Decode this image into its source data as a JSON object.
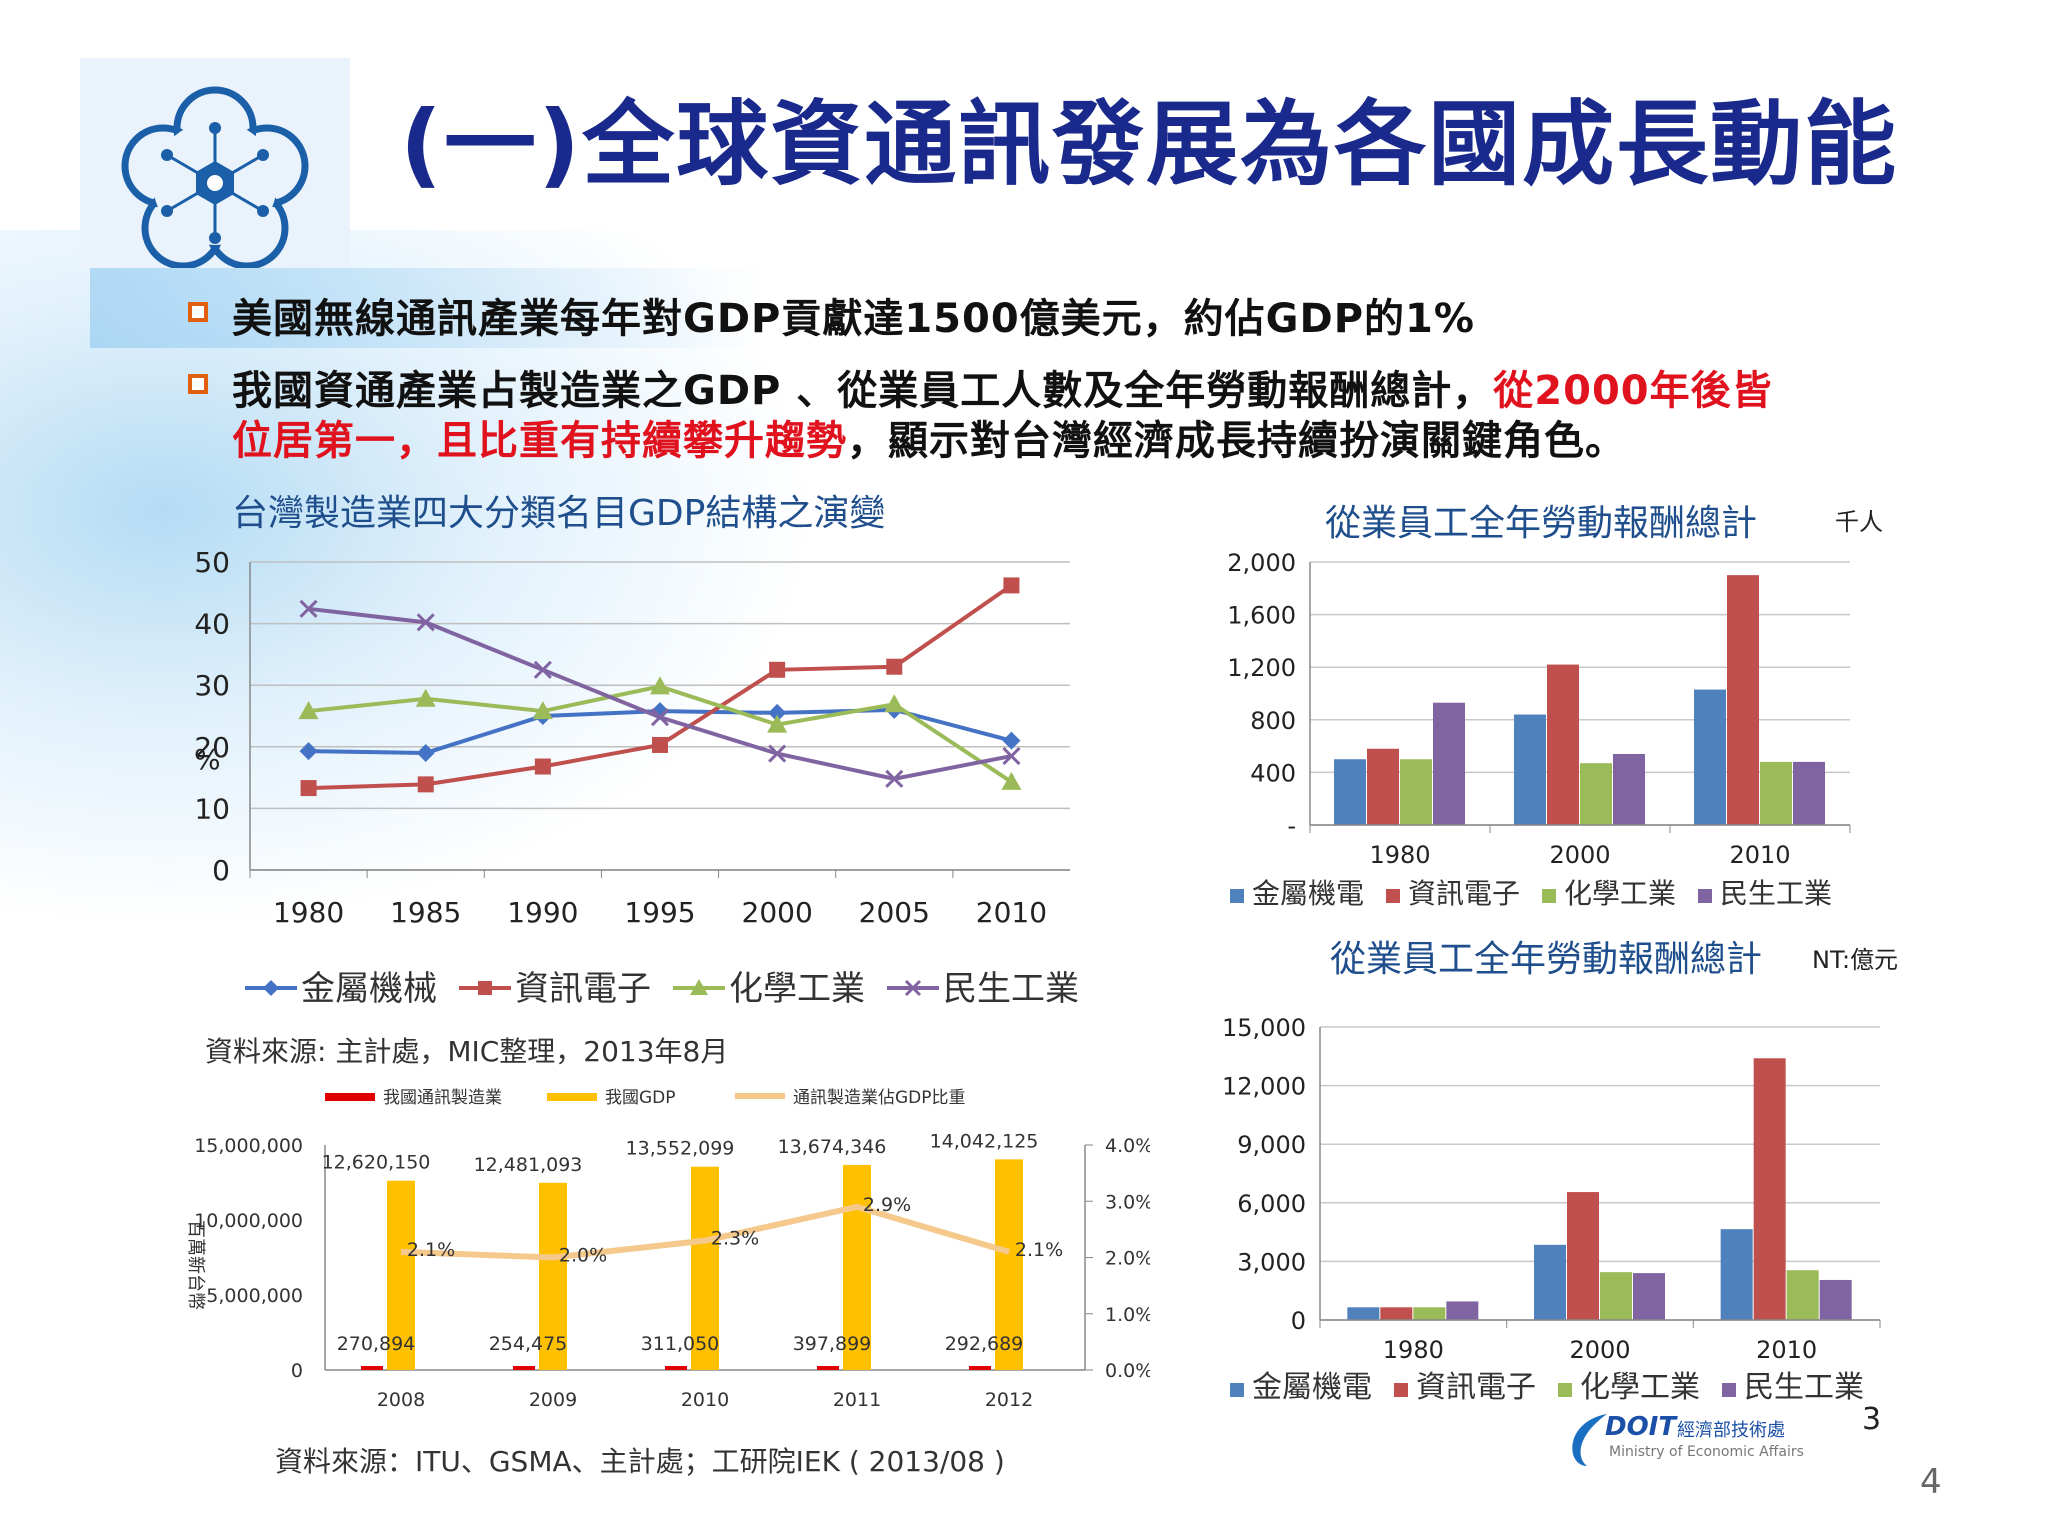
{
  "page_title": "(一)全球資通訊發展為各國成長動能",
  "bullets": [
    {
      "text": "美國無線通訊產業每年對GDP貢獻達1500億美元，約佔GDP的1%"
    },
    {
      "line1_black": "我國資通產業占製造業之GDP 、從業員工人數及全年勞動報酬總計，",
      "line1_red": "從2000年後皆",
      "line2_red": "位居第一，且比重有持續攀升趨勢",
      "line2_black": "，顯示對台灣經濟成長持續扮演關鍵角色。"
    }
  ],
  "chart_data": [
    {
      "type": "line",
      "title": "台灣製造業四大分類名目GDP結構之演變",
      "ylabel": "%",
      "x": [
        1980,
        1985,
        1990,
        1995,
        2000,
        2005,
        2010
      ],
      "ylim": [
        0,
        50
      ],
      "yticks": [
        0,
        10,
        20,
        30,
        40,
        50
      ],
      "grid": true,
      "legend": "bottom",
      "series": [
        {
          "name": "金屬機械",
          "color": "#4472c4",
          "marker": "diamond",
          "values": [
            19.3,
            19.0,
            25.0,
            25.8,
            25.5,
            26.0,
            21.0
          ]
        },
        {
          "name": "資訊電子",
          "color": "#c0504d",
          "marker": "square",
          "values": [
            13.3,
            13.9,
            16.8,
            20.3,
            32.5,
            33.0,
            46.2
          ]
        },
        {
          "name": "化學工業",
          "color": "#9bbb59",
          "marker": "triangle",
          "values": [
            25.8,
            27.8,
            25.8,
            29.8,
            23.6,
            26.9,
            14.3
          ]
        },
        {
          "name": "民生工業",
          "color": "#8064a2",
          "marker": "x",
          "values": [
            42.4,
            40.2,
            32.5,
            24.8,
            18.9,
            14.8,
            18.5
          ]
        }
      ],
      "source": "資料來源: 主計處，MIC整理，2013年8月"
    },
    {
      "type": "bar",
      "title": "從業員工全年勞動報酬總計",
      "unit": "千人",
      "categories": [
        "1980",
        "2000",
        "2010"
      ],
      "ylim": [
        0,
        2000
      ],
      "yticks": [
        "-",
        "400",
        "800",
        "1,200",
        "1,600",
        "2,000"
      ],
      "legend": "bottom",
      "series": [
        {
          "name": "金屬機電",
          "color": "#4f81bd",
          "values": [
            500,
            840,
            1030
          ]
        },
        {
          "name": "資訊電子",
          "color": "#c0504d",
          "values": [
            580,
            1220,
            1900
          ]
        },
        {
          "name": "化學工業",
          "color": "#9bbb59",
          "values": [
            500,
            470,
            480
          ]
        },
        {
          "name": "民生工業",
          "color": "#8064a2",
          "values": [
            930,
            540,
            480
          ]
        }
      ]
    },
    {
      "type": "bar",
      "title": "從業員工全年勞動報酬總計",
      "unit": "NT:億元",
      "categories": [
        "1980",
        "2000",
        "2010"
      ],
      "ylim": [
        0,
        15000
      ],
      "yticks": [
        "0",
        "3,000",
        "6,000",
        "9,000",
        "12,000",
        "15,000"
      ],
      "legend": "bottom",
      "series": [
        {
          "name": "金屬機電",
          "color": "#4f81bd",
          "values": [
            650,
            3850,
            4650
          ]
        },
        {
          "name": "資訊電子",
          "color": "#c0504d",
          "values": [
            650,
            6550,
            13400
          ]
        },
        {
          "name": "化學工業",
          "color": "#9bbb59",
          "values": [
            650,
            2450,
            2550
          ]
        },
        {
          "name": "民生工業",
          "color": "#8064a2",
          "values": [
            950,
            2400,
            2050
          ]
        }
      ]
    },
    {
      "type": "bar",
      "title": "",
      "ylabel": "百萬新台幣",
      "categories": [
        "2008",
        "2009",
        "2010",
        "2011",
        "2012"
      ],
      "ylim": [
        0,
        15000000
      ],
      "yticks": [
        "0",
        "5,000,000",
        "10,000,000",
        "15,000,000"
      ],
      "y2lim": [
        0,
        4
      ],
      "y2ticks": [
        "0.0%",
        "1.0%",
        "2.0%",
        "3.0%",
        "4.0%"
      ],
      "legend": "top",
      "series": [
        {
          "name": "我國通訊製造業",
          "color": "#e00000",
          "values": [
            270894,
            254475,
            311050,
            397899,
            292689
          ],
          "labels": [
            "270,894",
            "254,475",
            "311,050",
            "397,899",
            "292,689"
          ]
        },
        {
          "name": "我國GDP",
          "color": "#ffc000",
          "values": [
            12620150,
            12481093,
            13552099,
            13674346,
            14042125
          ],
          "labels": [
            "12,620,150",
            "12,481,093",
            "13,552,099",
            "13,674,346",
            "14,042,125"
          ]
        },
        {
          "name": "通訊製造業佔GDP比重",
          "type": "line",
          "color": "#f5c88c",
          "values": [
            2.1,
            2.0,
            2.3,
            2.9,
            2.1
          ],
          "labels": [
            "2.1%",
            "2.0%",
            "2.3%",
            "2.9%",
            "2.1%"
          ]
        }
      ],
      "source": "資料來源：ITU、GSMA、主計處；工研院IEK ( 2013/08 )"
    }
  ],
  "footer": {
    "org_logo_text": "DOIT",
    "org_name_zh": "經濟部技術處",
    "org_name_en": "Ministry of Economic Affairs",
    "slide_no_inner": "3",
    "slide_no": "4"
  }
}
